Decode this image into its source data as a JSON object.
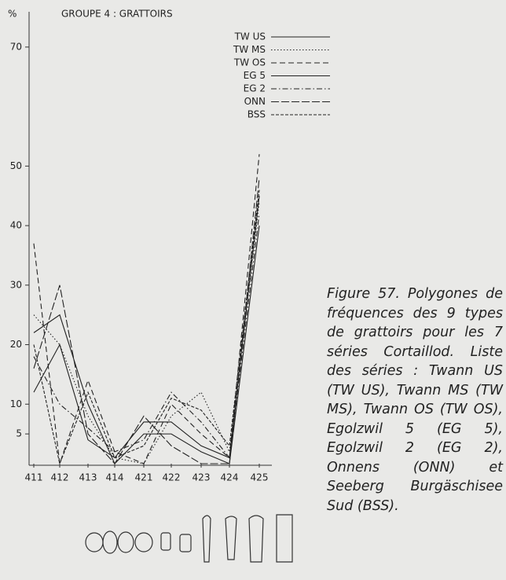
{
  "chart_data": {
    "type": "line",
    "title": "GROUPE 4 : GRATTOIRS",
    "y_label": "%",
    "categories": [
      "411",
      "412",
      "413",
      "414",
      "421",
      "422",
      "423",
      "424",
      "425"
    ],
    "series": [
      {
        "name": "TW US",
        "color": "#222",
        "dash": "none",
        "values": [
          12,
          20,
          4,
          1,
          7,
          7,
          3,
          1,
          45
        ]
      },
      {
        "name": "TW MS",
        "color": "#222",
        "dash": "1.5 2.5",
        "values": [
          25,
          20,
          8,
          1,
          0,
          8,
          12,
          2,
          44
        ]
      },
      {
        "name": "TW OS",
        "color": "#222",
        "dash": "7 4",
        "values": [
          37,
          0,
          14,
          2,
          0,
          10,
          5,
          1,
          52
        ]
      },
      {
        "name": "EG 5",
        "color": "#222",
        "dash": "none",
        "values": [
          22,
          25,
          10,
          0,
          5,
          5,
          2,
          0,
          40
        ]
      },
      {
        "name": "EG 2",
        "color": "#222",
        "dash": "7 3 1.5 3",
        "values": [
          18,
          10,
          6,
          2,
          4,
          12,
          7,
          1,
          42
        ]
      },
      {
        "name": "ONN",
        "color": "#222",
        "dash": "10 3",
        "values": [
          16,
          30,
          5,
          0,
          8,
          3,
          0,
          0,
          48
        ]
      },
      {
        "name": "BSS",
        "color": "#222",
        "dash": "4 2",
        "values": [
          20,
          0,
          12,
          1,
          3,
          11,
          9,
          3,
          46
        ]
      }
    ],
    "ylim": [
      0,
      75
    ],
    "yticks": [
      5,
      10,
      20,
      30,
      40,
      50,
      70
    ],
    "caption": "Figure 57. Polygones de fréquences des 9 types de grattoirs pour les 7 séries Cortaillod. Liste des séries : Twann US (TW US), Twann MS (TW MS), Twann OS (TW OS), Egolzwil 5 (EG 5), Egolzwil 2 (EG 2), Onnens (ONN) et Seeberg Burgäschisee Sud (BSS)."
  }
}
